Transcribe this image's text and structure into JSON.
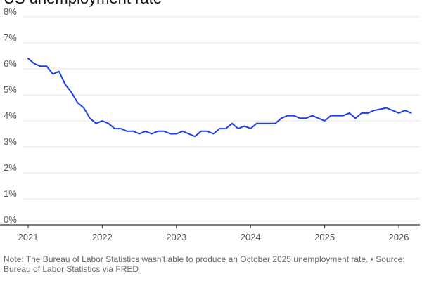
{
  "title": "US unemployment rate",
  "note": {
    "text": "Note: The Bureau of Labor Statistics wasn't able to produce an October 2025 unemployment rate. • Source:",
    "source_link": "Bureau of Labor Statistics via FRED"
  },
  "colors": {
    "line": "#1f3de8",
    "grid": "#e6e6e6",
    "axis": "#333333",
    "text": "#555555"
  },
  "chart_data": {
    "type": "line",
    "title": "US unemployment rate",
    "xlabel": "",
    "ylabel": "",
    "ylim": [
      0,
      8
    ],
    "yticks": [
      "0%",
      "1%",
      "2%",
      "3%",
      "4%",
      "5%",
      "6%",
      "7%",
      "8%"
    ],
    "xticks": [
      "2021",
      "2022",
      "2023",
      "2024",
      "2025",
      "2026"
    ],
    "grid": "horizontal",
    "series": [
      {
        "values": [
          6.4,
          6.2,
          6.1,
          6.1,
          5.8,
          5.9,
          5.4,
          5.1,
          4.7,
          4.5,
          4.1,
          3.9,
          4.0,
          3.9,
          3.7,
          3.7,
          3.6,
          3.6,
          3.5,
          3.6,
          3.5,
          3.6,
          3.6,
          3.5,
          3.5,
          3.6,
          3.5,
          3.4,
          3.6,
          3.6,
          3.5,
          3.7,
          3.7,
          3.9,
          3.7,
          3.8,
          3.7,
          3.9,
          3.9,
          3.9,
          3.9,
          4.1,
          4.2,
          4.2,
          4.1,
          4.1,
          4.2,
          4.1,
          4.0,
          4.2,
          4.2,
          4.2,
          4.3,
          4.1,
          4.3,
          4.3,
          4.4,
          4.45,
          4.5,
          4.4,
          4.3,
          4.4,
          4.3
        ]
      }
    ]
  }
}
